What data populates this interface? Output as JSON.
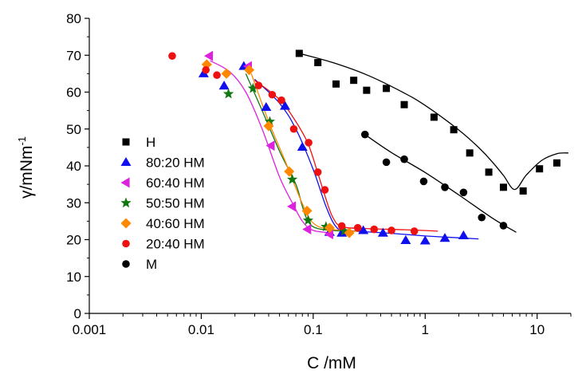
{
  "chart_data": {
    "type": "scatter",
    "xlabel": "C /mM",
    "ylabel": "γ/mNm",
    "ylabel_superscript": "-1",
    "x_scale": "log",
    "xlim": [
      0.001,
      20
    ],
    "ylim": [
      0,
      80
    ],
    "x_ticks": [
      "0.001",
      "0.01",
      "0.1",
      "1",
      "10"
    ],
    "y_ticks": [
      "0",
      "10",
      "20",
      "30",
      "40",
      "50",
      "60",
      "70",
      "80"
    ],
    "legend_position": "left-middle",
    "grid": false,
    "series": [
      {
        "name": "H",
        "marker": "square",
        "color": "#000000",
        "points": [
          [
            0.075,
            70.5
          ],
          [
            0.11,
            68
          ],
          [
            0.16,
            62.2
          ],
          [
            0.23,
            63.2
          ],
          [
            0.3,
            60.5
          ],
          [
            0.45,
            61
          ],
          [
            0.65,
            56.6
          ],
          [
            1.2,
            53.2
          ],
          [
            1.8,
            49.8
          ],
          [
            2.5,
            43.5
          ],
          [
            3.7,
            38.3
          ],
          [
            5,
            34.2
          ],
          [
            7.5,
            33.2
          ],
          [
            10.5,
            39.2
          ],
          [
            15,
            40.8
          ]
        ],
        "fit": [
          [
            0.075,
            70.5
          ],
          [
            0.15,
            68
          ],
          [
            0.3,
            64.7
          ],
          [
            0.6,
            60.3
          ],
          [
            1.0,
            56.4
          ],
          [
            2.0,
            49.7
          ],
          [
            3.0,
            45
          ],
          [
            4.0,
            41
          ],
          [
            5.0,
            37.4
          ],
          [
            6.3,
            33.6
          ],
          [
            8.0,
            37.5
          ],
          [
            11,
            41.5
          ],
          [
            15,
            43.3
          ],
          [
            19,
            43.5
          ]
        ]
      },
      {
        "name": "80:20 HM",
        "marker": "triangle",
        "color": "#1010ee",
        "points": [
          [
            0.0105,
            65
          ],
          [
            0.016,
            61.7
          ],
          [
            0.024,
            67
          ],
          [
            0.038,
            55.9
          ],
          [
            0.056,
            56.2
          ],
          [
            0.08,
            45.1
          ],
          [
            0.14,
            22
          ],
          [
            0.18,
            21.8
          ],
          [
            0.28,
            22.5
          ],
          [
            0.42,
            21.8
          ],
          [
            0.67,
            19.8
          ],
          [
            1,
            19.7
          ],
          [
            1.5,
            20.4
          ],
          [
            2.2,
            21.1
          ]
        ],
        "fit": [
          [
            0.03,
            63.5
          ],
          [
            0.05,
            57
          ],
          [
            0.07,
            50
          ],
          [
            0.1,
            39
          ],
          [
            0.13,
            29
          ],
          [
            0.16,
            23.5
          ],
          [
            0.2,
            22.5
          ],
          [
            0.5,
            21.7
          ],
          [
            1,
            21
          ],
          [
            2,
            20.5
          ],
          [
            3,
            20.2
          ]
        ]
      },
      {
        "name": "60:40 HM",
        "marker": "triangle-left",
        "color": "#dd22dd",
        "points": [
          [
            0.0118,
            69.8
          ],
          [
            0.0263,
            67
          ],
          [
            0.042,
            45.5
          ],
          [
            0.065,
            29
          ],
          [
            0.089,
            22.8
          ],
          [
            0.14,
            21.5
          ]
        ],
        "fit": [
          [
            0.012,
            68.5
          ],
          [
            0.018,
            65.5
          ],
          [
            0.025,
            60
          ],
          [
            0.035,
            50
          ],
          [
            0.05,
            37
          ],
          [
            0.065,
            30
          ],
          [
            0.08,
            25
          ],
          [
            0.1,
            22.5
          ],
          [
            0.15,
            21.8
          ]
        ]
      },
      {
        "name": "50:50 HM",
        "marker": "star",
        "color": "#117711",
        "points": [
          [
            0.0175,
            59.5
          ],
          [
            0.029,
            61
          ],
          [
            0.041,
            52
          ],
          [
            0.065,
            36.3
          ],
          [
            0.09,
            25.2
          ],
          [
            0.13,
            23.5
          ],
          [
            0.19,
            22.3
          ]
        ],
        "fit": [
          [
            0.025,
            65
          ],
          [
            0.035,
            55
          ],
          [
            0.05,
            44
          ],
          [
            0.07,
            35
          ],
          [
            0.08,
            29
          ],
          [
            0.09,
            25
          ],
          [
            0.11,
            23
          ],
          [
            0.2,
            22.2
          ]
        ]
      },
      {
        "name": "40:60 HM",
        "marker": "diamond",
        "color": "#ff8800",
        "points": [
          [
            0.0112,
            67.5
          ],
          [
            0.0168,
            65
          ],
          [
            0.0268,
            66
          ],
          [
            0.04,
            50.8
          ],
          [
            0.061,
            38.5
          ],
          [
            0.088,
            27.8
          ],
          [
            0.14,
            23.2
          ],
          [
            0.21,
            21.8
          ]
        ],
        "fit": [
          [
            0.028,
            65
          ],
          [
            0.04,
            52
          ],
          [
            0.055,
            42
          ],
          [
            0.07,
            34
          ],
          [
            0.085,
            28
          ],
          [
            0.1,
            24.5
          ],
          [
            0.13,
            23
          ],
          [
            0.25,
            22.2
          ]
        ]
      },
      {
        "name": "20:40 HM",
        "marker": "circle",
        "color": "#ee1111",
        "points": [
          [
            0.0055,
            69.8
          ],
          [
            0.011,
            66
          ],
          [
            0.0138,
            64.6
          ],
          [
            0.0325,
            61.8
          ],
          [
            0.043,
            59.3
          ],
          [
            0.052,
            57.8
          ],
          [
            0.067,
            50
          ],
          [
            0.091,
            46.3
          ],
          [
            0.11,
            38.3
          ],
          [
            0.127,
            33.5
          ],
          [
            0.18,
            23.7
          ],
          [
            0.25,
            23.2
          ],
          [
            0.35,
            22.8
          ],
          [
            0.5,
            22.5
          ],
          [
            0.8,
            22.3
          ]
        ],
        "fit": [
          [
            0.03,
            63.2
          ],
          [
            0.05,
            58
          ],
          [
            0.07,
            52
          ],
          [
            0.09,
            46
          ],
          [
            0.11,
            38
          ],
          [
            0.13,
            31
          ],
          [
            0.15,
            26
          ],
          [
            0.18,
            23.5
          ],
          [
            0.3,
            23
          ],
          [
            0.8,
            22.6
          ],
          [
            1.3,
            22.3
          ]
        ]
      },
      {
        "name": "M",
        "marker": "circle",
        "color": "#000000",
        "points": [
          [
            0.29,
            48.5
          ],
          [
            0.45,
            41
          ],
          [
            0.65,
            41.8
          ],
          [
            0.97,
            35.8
          ],
          [
            1.5,
            34.2
          ],
          [
            2.2,
            32.8
          ],
          [
            3.2,
            26
          ],
          [
            5,
            23.8
          ]
        ],
        "fit": [
          [
            0.29,
            48.5
          ],
          [
            0.5,
            43.6
          ],
          [
            1.0,
            38.2
          ],
          [
            2.0,
            32.1
          ],
          [
            4.0,
            25.8
          ],
          [
            6.5,
            22
          ]
        ]
      }
    ]
  }
}
